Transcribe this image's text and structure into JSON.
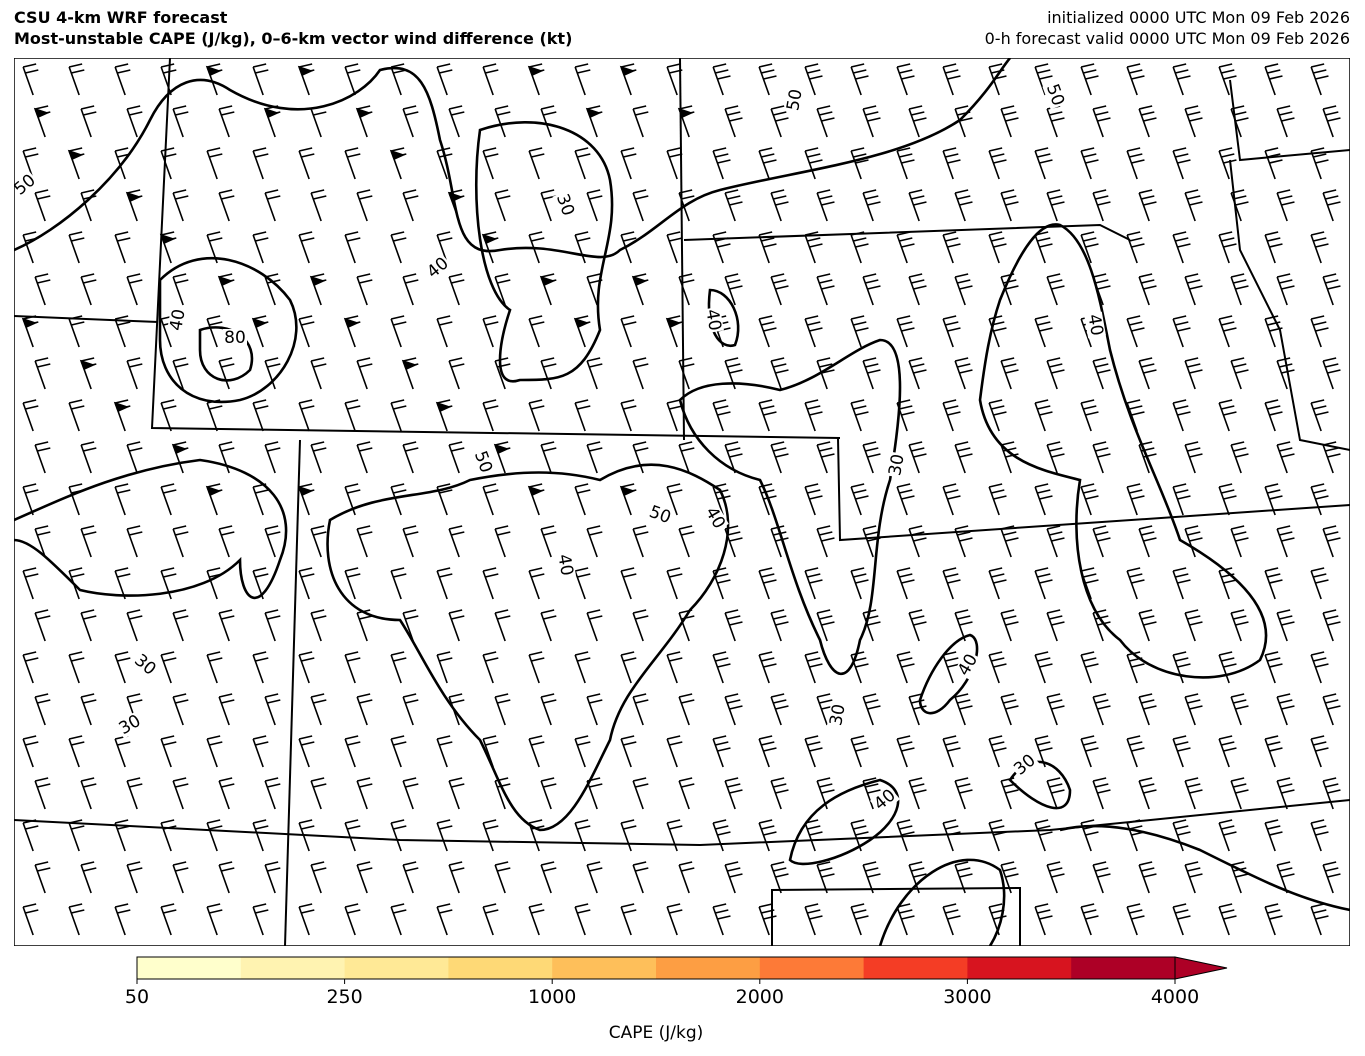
{
  "header": {
    "title": "CSU 4-km WRF forecast",
    "subtitle": "Most-unstable CAPE (J/kg), 0–6-km vector wind difference (kt)",
    "initialized": "initialized 0000 UTC Mon 09 Feb 2026",
    "valid": "0-h forecast valid 0000 UTC Mon 09 Feb 2026"
  },
  "contour_labels": [
    50,
    80,
    40,
    30,
    40,
    50,
    50,
    40,
    40,
    50,
    50,
    40,
    30,
    40,
    30,
    30,
    40,
    30,
    40,
    30
  ],
  "colorbar": {
    "label": "CAPE (J/kg)",
    "ticks": [
      50,
      250,
      1000,
      2000,
      3000,
      4000
    ],
    "colors": [
      "#ffffcc",
      "#fff3b1",
      "#ffe996",
      "#fed976",
      "#febf5a",
      "#fd9e43",
      "#fd7a37",
      "#f43d25",
      "#d7141f",
      "#ad0026"
    ]
  }
}
